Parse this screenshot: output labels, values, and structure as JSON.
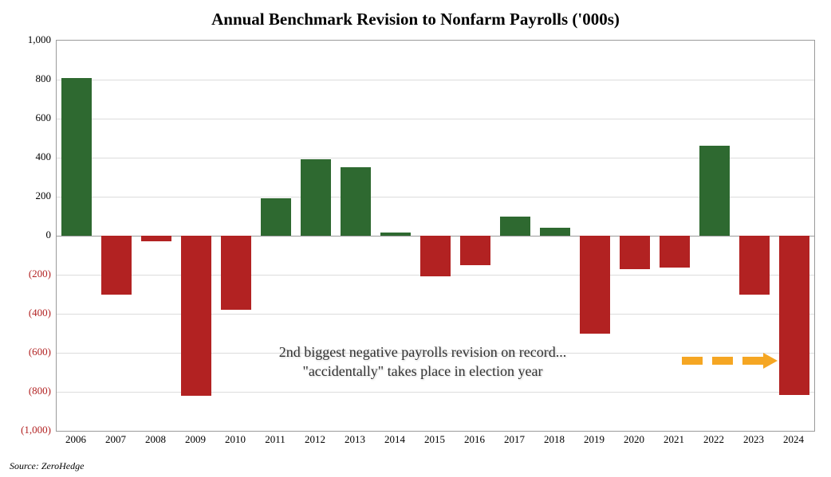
{
  "chart": {
    "type": "bar",
    "title": "Annual Benchmark Revision to Nonfarm Payrolls ('000s)",
    "title_fontsize": 21,
    "background_color": "#ffffff",
    "border_color": "#9a9a9a",
    "grid_color": "#dcdcdc",
    "positive_color": "#2e6930",
    "negative_color": "#b22222",
    "bar_width": 0.75,
    "ylim": [
      -1000,
      1000
    ],
    "ytick_step": 200,
    "yticks": [
      1000,
      800,
      600,
      400,
      200,
      0,
      -200,
      -400,
      -600,
      -800,
      -1000
    ],
    "label_fontsize": 13,
    "categories": [
      "2006",
      "2007",
      "2008",
      "2009",
      "2010",
      "2011",
      "2012",
      "2013",
      "2014",
      "2015",
      "2016",
      "2017",
      "2018",
      "2019",
      "2020",
      "2021",
      "2022",
      "2023",
      "2024"
    ],
    "values": [
      810,
      -300,
      -30,
      -820,
      -380,
      190,
      390,
      350,
      15,
      -210,
      -150,
      100,
      40,
      -500,
      -170,
      -165,
      460,
      -300,
      -818
    ],
    "annotation": {
      "line1": "2nd  biggest negative payrolls revision on record...",
      "line2": "\"accidentally\" takes place in election year",
      "fontsize": 18,
      "color": "#333333",
      "shadow": true
    },
    "arrow": {
      "color": "#f5a623",
      "dash_width": 26,
      "dash_gap": 12,
      "dash_count": 3,
      "head_size": 18
    },
    "source": "Source: ZeroHedge"
  }
}
